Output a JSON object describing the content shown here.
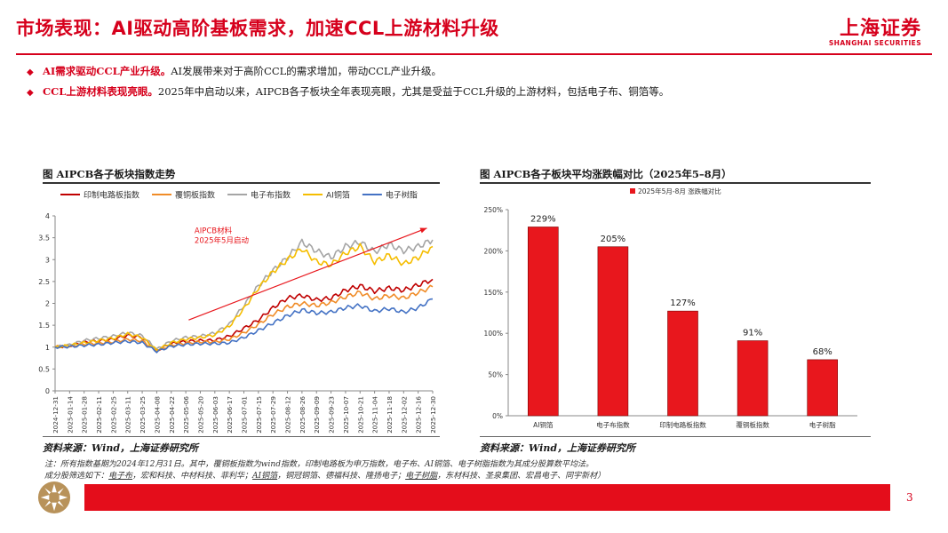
{
  "header": {
    "title": "市场表现：AI驱动高阶基板需求，加速CCL上游材料升级",
    "logo_cn": "上海证券",
    "logo_en": "SHANGHAI SECURITIES"
  },
  "bullets": [
    {
      "highlight": "AI需求驱动CCL产业升级。",
      "text": "AI发展带来对于高阶CCL的需求增加，带动CCL产业升级。"
    },
    {
      "highlight": "CCL上游材料表现亮眼。",
      "text": "2025年中启动以来，AIPCB各子板块全年表现亮眼，尤其是受益于CCL升级的上游材料，包括电子布、铜箔等。"
    }
  ],
  "left_chart": {
    "title": "图  AIPCB各子板块指数走势",
    "source": "资料来源：Wind，上海证券研究所"
  },
  "right_chart": {
    "title": "图  AIPCB各子板块平均涨跌幅对比（2025年5–8月）",
    "source": "资料来源：Wind，上海证券研究所"
  },
  "notes": {
    "line1": "注：所有指数基期为2024年12月31日。其中，覆铜板指数为wind指数，印制电路板为申万指数，电子布、AI铜箔、电子树脂指数为其成分股算数平均法。",
    "line2_prefix": "成分股筛选如下：",
    "line2_seg1": "电子布",
    "line2_seg1_rest": "，宏和科技、中材科技、菲利华；",
    "line2_seg2": "AI铜箔",
    "line2_seg2_rest": "，铜冠铜箔、德福科技、隆扬电子；",
    "line2_seg3": "电子树脂",
    "line2_seg3_rest": "，东材科技、圣泉集团、宏昌电子、同宇新材）"
  },
  "footer": {
    "page": "3"
  },
  "chart_data": [
    {
      "type": "line",
      "title": "AIPCB各子板块指数走势",
      "x": [
        "2024-12-31",
        "2025-01-14",
        "2025-01-28",
        "2025-02-11",
        "2025-02-25",
        "2025-03-11",
        "2025-03-25",
        "2025-04-08",
        "2025-04-22",
        "2025-05-06",
        "2025-05-20",
        "2025-06-03",
        "2025-06-17",
        "2025-07-01",
        "2025-07-15",
        "2025-07-29",
        "2025-08-12",
        "2025-08-26",
        "2025-09-09",
        "2025-09-23",
        "2025-10-07",
        "2025-10-21",
        "2025-11-04",
        "2025-11-18",
        "2025-12-02",
        "2025-12-16",
        "2025-12-30"
      ],
      "ylim": [
        0,
        4
      ],
      "yticks": [
        0,
        0.5,
        1,
        1.5,
        2,
        2.5,
        3,
        3.5,
        4
      ],
      "series": [
        {
          "name": "印制电路板指数",
          "color": "#c00000",
          "values": [
            1.0,
            1.03,
            1.12,
            1.14,
            1.18,
            1.27,
            1.22,
            0.92,
            1.08,
            1.13,
            1.15,
            1.16,
            1.25,
            1.43,
            1.62,
            1.9,
            2.12,
            2.18,
            2.08,
            2.12,
            2.3,
            2.4,
            2.28,
            2.35,
            2.3,
            2.42,
            2.55
          ]
        },
        {
          "name": "覆铜板指数",
          "color": "#f08c28",
          "values": [
            1.0,
            1.02,
            1.07,
            1.09,
            1.12,
            1.18,
            1.14,
            0.92,
            1.04,
            1.09,
            1.12,
            1.12,
            1.18,
            1.33,
            1.52,
            1.75,
            1.92,
            2.0,
            1.95,
            2.02,
            2.15,
            2.25,
            2.1,
            2.18,
            2.12,
            2.25,
            2.38
          ]
        },
        {
          "name": "电子布指数",
          "color": "#a5a5a5",
          "values": [
            1.0,
            1.05,
            1.15,
            1.2,
            1.25,
            1.33,
            1.26,
            0.95,
            1.14,
            1.22,
            1.25,
            1.32,
            1.52,
            1.95,
            2.4,
            2.75,
            3.05,
            3.4,
            3.2,
            3.05,
            3.3,
            3.4,
            3.18,
            3.35,
            3.2,
            3.3,
            3.45
          ]
        },
        {
          "name": "AI铜箔",
          "color": "#f5bd00",
          "values": [
            1.0,
            1.04,
            1.1,
            1.15,
            1.2,
            1.3,
            1.22,
            0.93,
            1.1,
            1.18,
            1.22,
            1.28,
            1.48,
            1.88,
            2.35,
            2.72,
            3.0,
            3.25,
            2.95,
            2.88,
            3.15,
            3.3,
            2.95,
            3.1,
            2.9,
            3.05,
            3.3
          ]
        },
        {
          "name": "电子树脂",
          "color": "#4472c4",
          "values": [
            1.0,
            1.01,
            1.04,
            1.06,
            1.1,
            1.13,
            1.1,
            0.9,
            1.02,
            1.06,
            1.08,
            1.08,
            1.1,
            1.22,
            1.38,
            1.55,
            1.72,
            1.85,
            1.78,
            1.8,
            1.9,
            1.95,
            1.82,
            1.88,
            1.8,
            1.9,
            2.1
          ]
        }
      ],
      "annotation": {
        "text_line1": "AIPCB材料",
        "text_line2": "2025年5月启动"
      }
    },
    {
      "type": "bar",
      "title": "AIPCB各子板块平均涨跌幅对比（2025年5–8月）",
      "legend": "2025年5月-8月 涨跌幅对比",
      "categories": [
        "AI铜箔",
        "电子布指数",
        "印制电路板指数",
        "覆铜板指数",
        "电子树脂"
      ],
      "values": [
        229,
        205,
        127,
        91,
        68
      ],
      "labels": [
        "229%",
        "205%",
        "127%",
        "91%",
        "68%"
      ],
      "ylim": [
        0,
        250
      ],
      "yticks": [
        "0%",
        "50%",
        "100%",
        "150%",
        "200%",
        "250%"
      ],
      "color": "#e8171d"
    }
  ]
}
